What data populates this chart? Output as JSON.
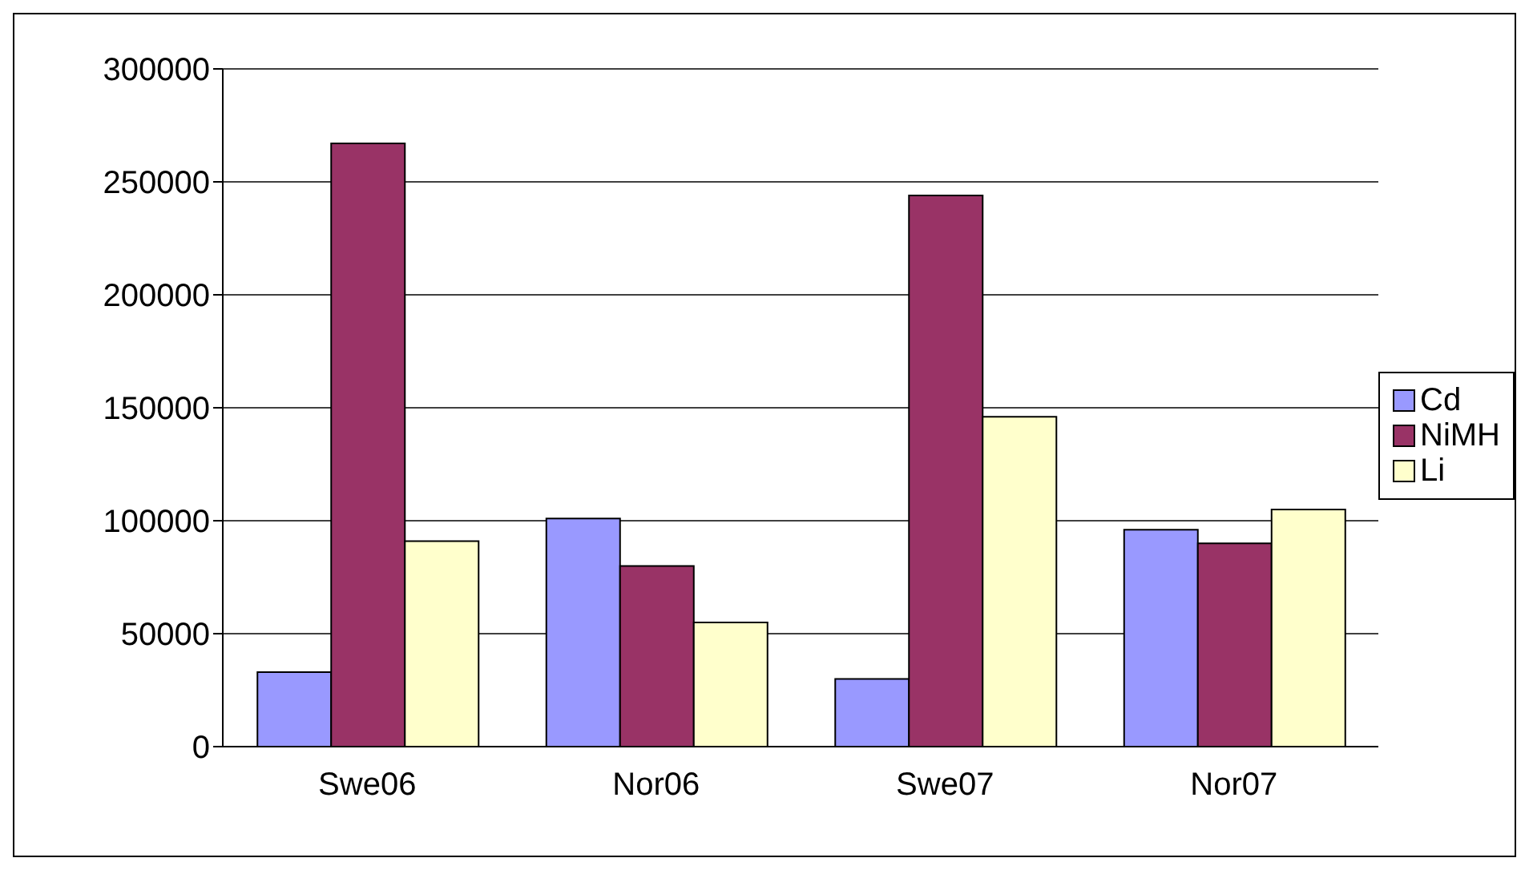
{
  "chart_data": {
    "type": "bar",
    "categories": [
      "Swe06",
      "Nor06",
      "Swe07",
      "Nor07"
    ],
    "series": [
      {
        "name": "Cd",
        "color": "#9999ff",
        "values": [
          33000,
          101000,
          30000,
          96000
        ]
      },
      {
        "name": "NiMH",
        "color": "#993366",
        "values": [
          267000,
          80000,
          244000,
          90000
        ]
      },
      {
        "name": "Li",
        "color": "#ffffcc",
        "values": [
          91000,
          55000,
          146000,
          105000
        ]
      }
    ],
    "ylim": [
      0,
      300000
    ],
    "yticks": [
      0,
      50000,
      100000,
      150000,
      200000,
      250000,
      300000
    ],
    "grid": "y",
    "legend": "right"
  }
}
